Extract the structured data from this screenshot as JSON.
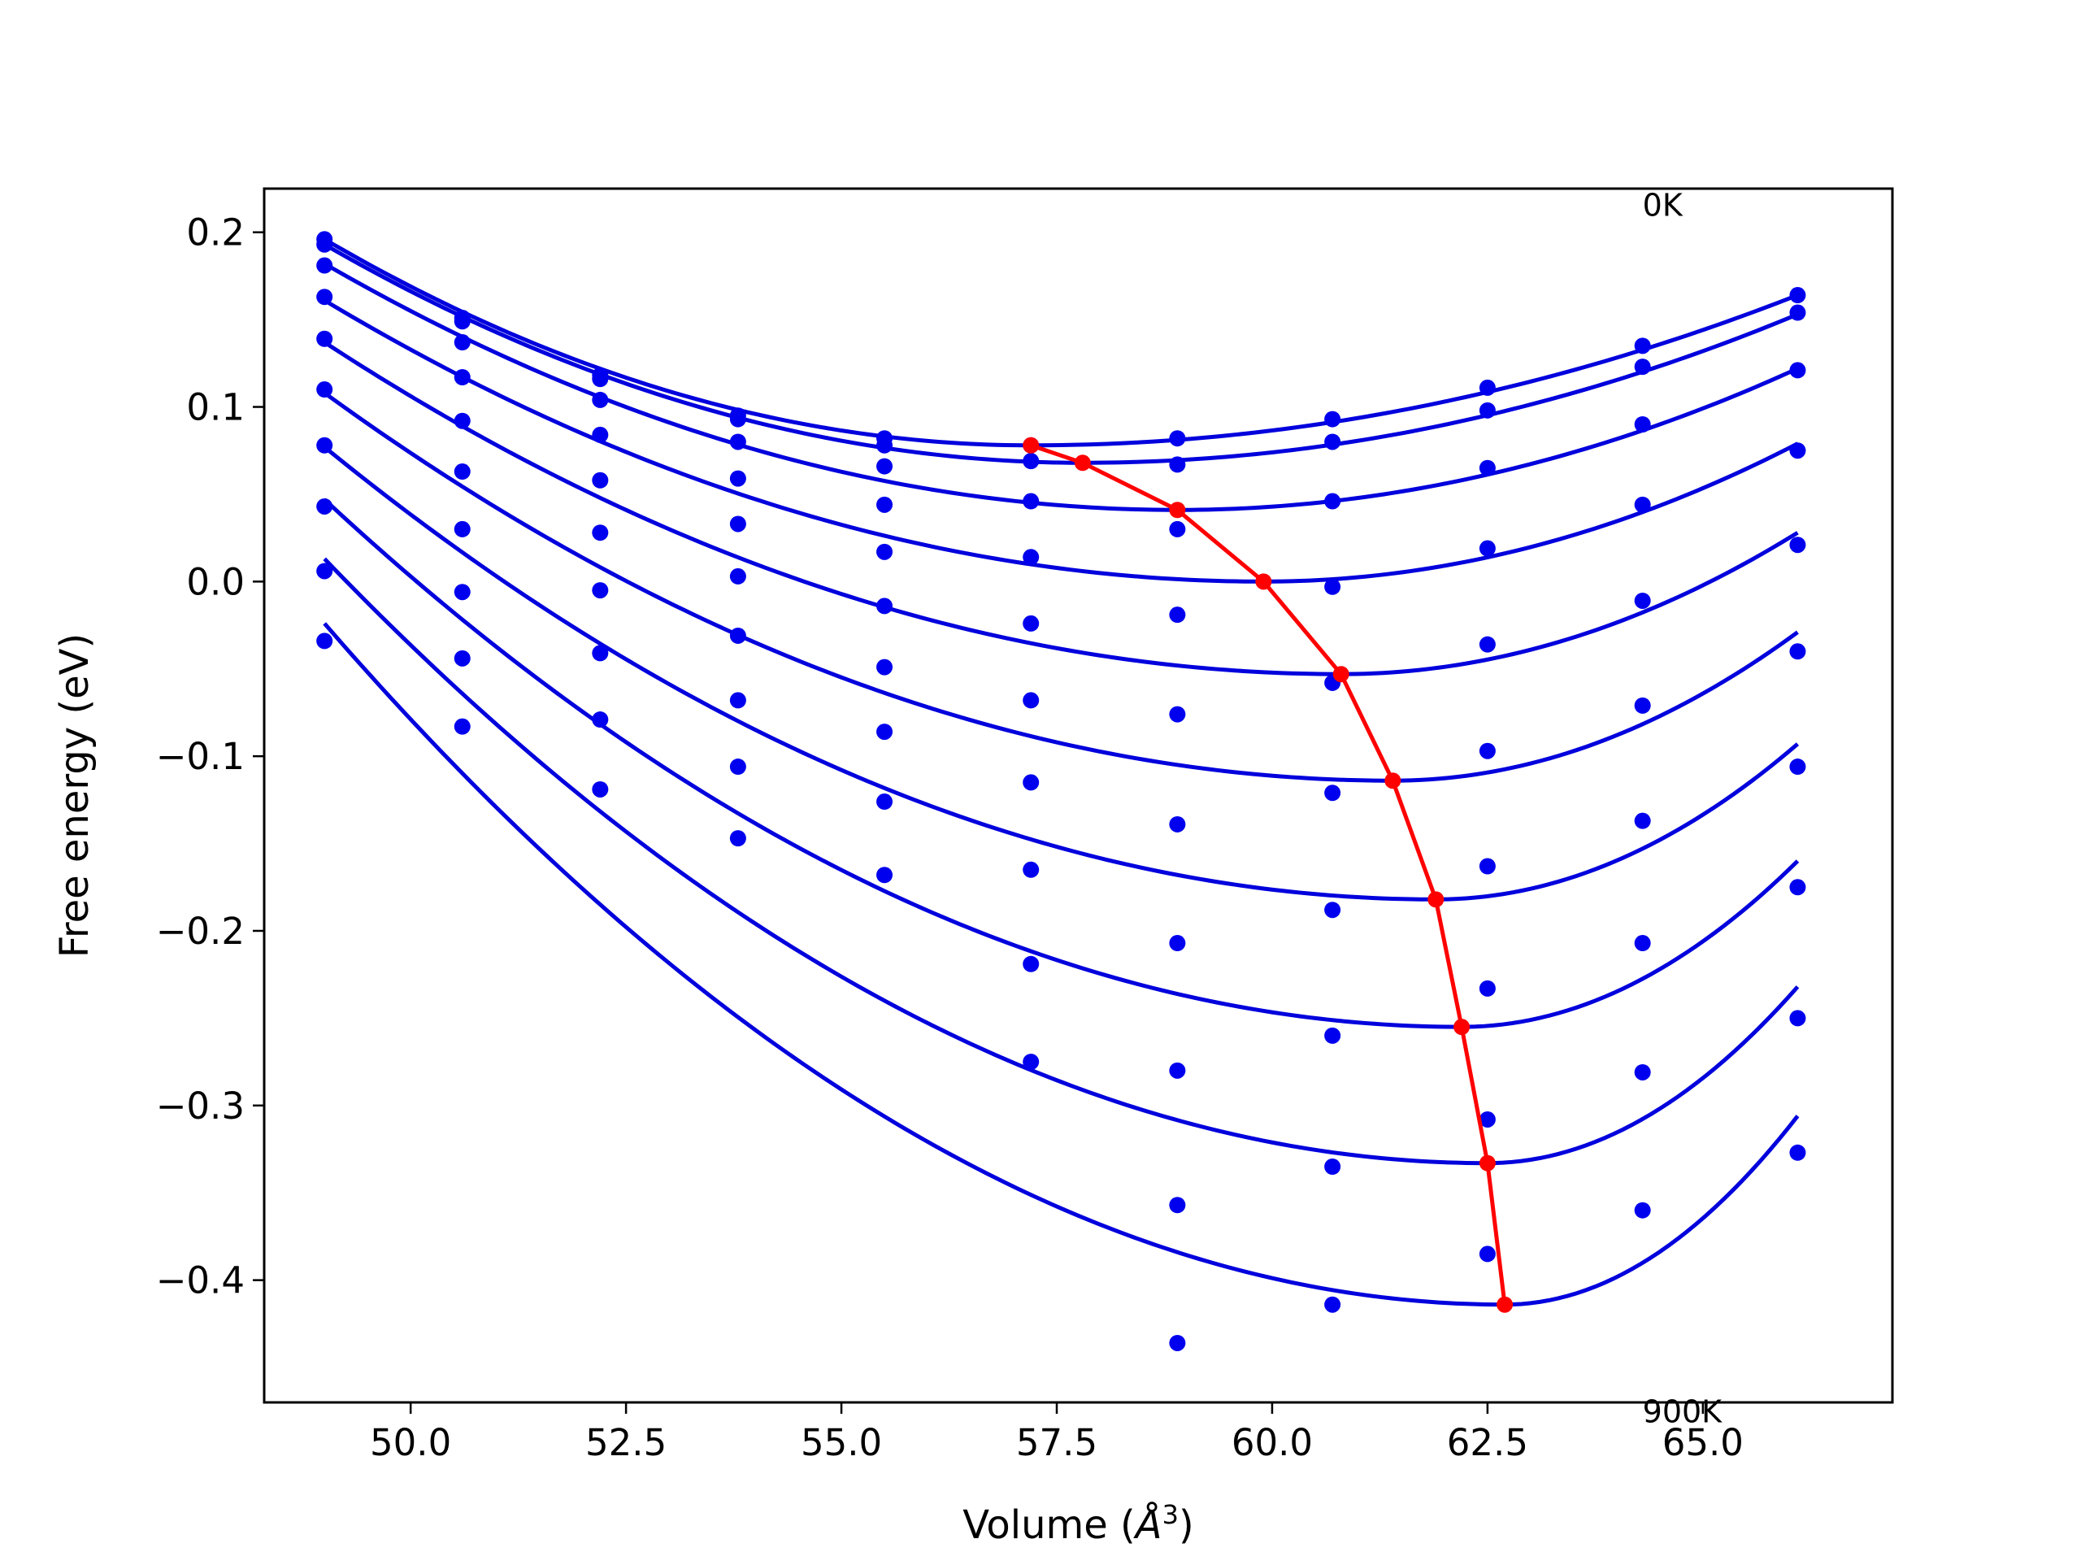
{
  "chart_data": {
    "type": "scatter",
    "xlabel_text": "Volume (",
    "xlabel_sup": "3",
    "xlabel_close": ")",
    "xlabel_unit": "Å",
    "ylabel": "Free energy (eV)",
    "xlim": [
      48.3,
      67.2
    ],
    "ylim": [
      -0.47,
      0.225
    ],
    "grid": false,
    "xticks": [
      50.0,
      52.5,
      55.0,
      57.5,
      60.0,
      62.5,
      65.0
    ],
    "xtick_labels": [
      "50.0",
      "52.5",
      "55.0",
      "57.5",
      "60.0",
      "62.5",
      "65.0"
    ],
    "yticks": [
      0.2,
      0.1,
      0.0,
      -0.1,
      -0.2,
      -0.3,
      -0.4
    ],
    "ytick_labels": [
      "0.2",
      "0.1",
      "0.0",
      "−0.1",
      "−0.2",
      "−0.3",
      "−0.4"
    ],
    "annotations": [
      {
        "text": "0K",
        "x": 64.3,
        "y": 0.216
      },
      {
        "text": "900K",
        "x": 64.3,
        "y": -0.475
      }
    ],
    "colors": {
      "fit": "#0000dd",
      "points": "#0000ee",
      "minimum": "#ff0000"
    },
    "volumes": [
      49.0,
      50.6,
      52.2,
      53.8,
      55.5,
      57.2,
      58.9,
      60.7,
      62.5,
      64.3,
      66.1
    ],
    "temperature_series": [
      {
        "points": [
          0.196,
          0.151,
          0.118,
          0.095,
          0.082,
          0.078,
          0.082,
          0.093,
          0.111,
          0.135,
          0.164
        ],
        "fit_min": [
          57.2,
          0.078
        ],
        "fit_start": 0.196,
        "fit_end": 0.164
      },
      {
        "points": [
          0.193,
          0.149,
          0.116,
          0.093,
          0.078,
          0.069,
          0.067,
          0.08,
          0.098,
          0.123,
          0.154
        ],
        "fit_min": [
          57.8,
          0.068
        ],
        "fit_start": 0.193,
        "fit_end": 0.153
      },
      {
        "points": [
          0.181,
          0.137,
          0.104,
          0.08,
          0.066,
          0.046,
          0.03,
          0.046,
          0.065,
          0.09,
          0.121
        ],
        "fit_min": [
          58.9,
          0.041
        ],
        "fit_start": 0.182,
        "fit_end": 0.122
      },
      {
        "points": [
          0.163,
          0.117,
          0.084,
          0.059,
          0.044,
          0.014,
          -0.019,
          -0.003,
          0.019,
          0.044,
          0.075
        ],
        "fit_min": [
          59.9,
          0.0
        ],
        "fit_start": 0.161,
        "fit_end": 0.079
      },
      {
        "points": [
          0.139,
          0.092,
          0.058,
          0.033,
          0.017,
          -0.024,
          -0.076,
          -0.058,
          -0.036,
          -0.011,
          0.021
        ],
        "fit_min": [
          60.8,
          -0.053
        ],
        "fit_start": 0.137,
        "fit_end": 0.028
      },
      {
        "points": [
          0.11,
          0.063,
          0.028,
          0.003,
          -0.014,
          -0.068,
          -0.139,
          -0.121,
          -0.097,
          -0.071,
          -0.04
        ],
        "fit_min": [
          61.4,
          -0.114
        ],
        "fit_start": 0.108,
        "fit_end": -0.029
      },
      {
        "points": [
          0.078,
          0.03,
          -0.005,
          -0.031,
          -0.049,
          -0.115,
          -0.207,
          -0.188,
          -0.163,
          -0.137,
          -0.106
        ],
        "fit_min": [
          61.9,
          -0.182
        ],
        "fit_start": 0.077,
        "fit_end": -0.093
      },
      {
        "points": [
          0.043,
          -0.006,
          -0.041,
          -0.068,
          -0.086,
          -0.165,
          -0.28,
          -0.26,
          -0.233,
          -0.207,
          -0.175
        ],
        "fit_min": [
          62.2,
          -0.255
        ],
        "fit_start": 0.047,
        "fit_end": -0.16
      },
      {
        "points": [
          0.006,
          -0.044,
          -0.079,
          -0.106,
          -0.126,
          -0.219,
          -0.357,
          -0.335,
          -0.308,
          -0.281,
          -0.25
        ],
        "fit_min": [
          62.5,
          -0.333
        ],
        "fit_start": 0.013,
        "fit_end": -0.232
      },
      {
        "points": [
          -0.034,
          -0.083,
          -0.119,
          -0.147,
          -0.168,
          -0.275,
          -0.436,
          -0.414,
          -0.385,
          -0.36,
          -0.327
        ],
        "fit_min": [
          62.7,
          -0.414
        ],
        "fit_start": -0.024,
        "fit_end": -0.306
      }
    ],
    "minimum_line": {
      "x": [
        57.2,
        57.8,
        58.9,
        59.9,
        60.8,
        61.4,
        61.9,
        62.2,
        62.5,
        62.7
      ],
      "y": [
        0.078,
        0.068,
        0.041,
        0.0,
        -0.053,
        -0.114,
        -0.182,
        -0.255,
        -0.333,
        -0.414
      ]
    }
  }
}
